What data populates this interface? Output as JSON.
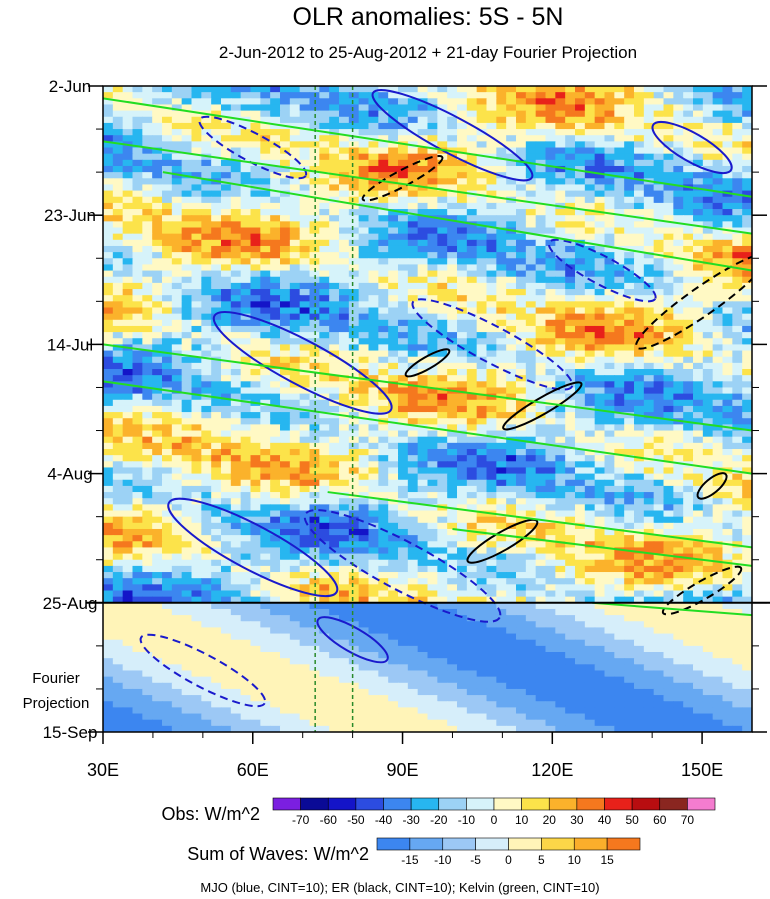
{
  "chart_data": {
    "type": "heatmap",
    "title": "OLR anomalies: 5S - 5N",
    "subtitle": "2-Jun-2012 to 25-Aug-2012 + 21-day Fourier Projection",
    "xlabel": "",
    "ylabel": "",
    "x_ticks": [
      "30E",
      "60E",
      "90E",
      "120E",
      "150E"
    ],
    "x_tick_values": [
      30,
      60,
      90,
      120,
      150
    ],
    "xlim": [
      30,
      160
    ],
    "y_ticks": [
      "2-Jun",
      "23-Jun",
      "14-Jul",
      "4-Aug",
      "25-Aug",
      "15-Sep"
    ],
    "y_tick_values": [
      "2012-06-02",
      "2012-06-23",
      "2012-07-14",
      "2012-08-04",
      "2012-08-25",
      "2012-09-15"
    ],
    "ylim": [
      "2012-06-02",
      "2012-09-15"
    ],
    "y_reversed": true,
    "observation_end": "2012-08-25",
    "projection_label_line1": "Fourier",
    "projection_label_line2": "Projection",
    "reference_lines_lon": [
      72.5,
      80
    ],
    "obs_colorbar": {
      "label": "Obs: W/m^2",
      "ticks": [
        "-70",
        "-60",
        "-50",
        "-40",
        "-30",
        "-20",
        "-10",
        "0",
        "10",
        "20",
        "30",
        "40",
        "50",
        "60",
        "70"
      ],
      "colors": [
        "#7b1fe0",
        "#0a0a96",
        "#1414c8",
        "#2c4ce0",
        "#3c86f0",
        "#27b6f0",
        "#9cd2f5",
        "#d6f3fa",
        "#fff9c4",
        "#fce34a",
        "#fbb22b",
        "#f5781e",
        "#e8211a",
        "#b80d10",
        "#8a2620",
        "#f47ccf"
      ]
    },
    "waves_colorbar": {
      "label": "Sum of Waves: W/m^2",
      "ticks": [
        "-15",
        "-10",
        "-5",
        "0",
        "5",
        "10",
        "15"
      ],
      "colors": [
        "#3c86f0",
        "#66a8f2",
        "#9cc8f5",
        "#d6eefa",
        "#fff4b8",
        "#fcd648",
        "#fbae2b",
        "#f5781e"
      ]
    },
    "legend_note": "MJO (blue, CINT=10); ER (black, CINT=10); Kelvin (green, CINT=10)",
    "series": [
      {
        "name": "MJO",
        "color": "#1a1acc"
      },
      {
        "name": "ER",
        "color": "#000000"
      },
      {
        "name": "Kelvin",
        "color": "#22dd22"
      }
    ],
    "grid": false
  }
}
